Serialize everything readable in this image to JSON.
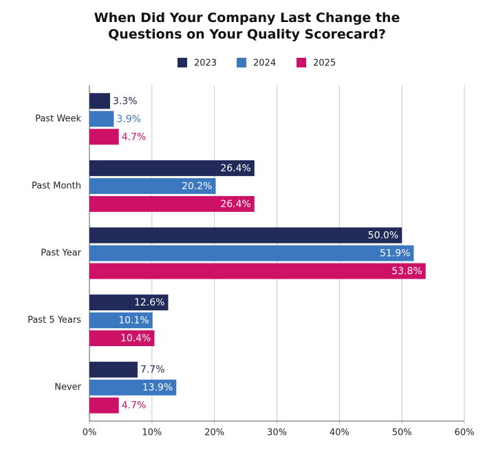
{
  "chart_data": {
    "type": "hbar",
    "title": "When Did Your Company Last Change the Questions on Your Quality Scorecard?",
    "categories": [
      "Past Week",
      "Past Month",
      "Past Year",
      "Past 5 Years",
      "Never"
    ],
    "series": [
      {
        "name": "2023",
        "color": "#222a5a",
        "values": [
          3.3,
          26.4,
          50.0,
          12.6,
          7.7
        ],
        "value_labels": [
          "3.3%",
          "26.4%",
          "50.0%",
          "12.6%",
          "7.7%"
        ]
      },
      {
        "name": "2024",
        "color": "#3b78c0",
        "values": [
          3.9,
          20.2,
          51.9,
          10.1,
          13.9
        ],
        "value_labels": [
          "3.9%",
          "20.2%",
          "51.9%",
          "10.1%",
          "13.9%"
        ]
      },
      {
        "name": "2025",
        "color": "#cc1166",
        "values": [
          4.7,
          26.4,
          53.8,
          10.4,
          4.7
        ],
        "value_labels": [
          "4.7%",
          "26.4%",
          "53.8%",
          "10.4%",
          "4.7%"
        ]
      }
    ],
    "xlim": [
      0,
      60
    ],
    "xticks": [
      {
        "value": 0,
        "label": "0%"
      },
      {
        "value": 10,
        "label": "10%"
      },
      {
        "value": 20,
        "label": "20%"
      },
      {
        "value": 30,
        "label": "30%"
      },
      {
        "value": 40,
        "label": "40%"
      },
      {
        "value": 50,
        "label": "50%"
      },
      {
        "value": 60,
        "label": "60%"
      }
    ],
    "grid": true,
    "legend": "top"
  }
}
